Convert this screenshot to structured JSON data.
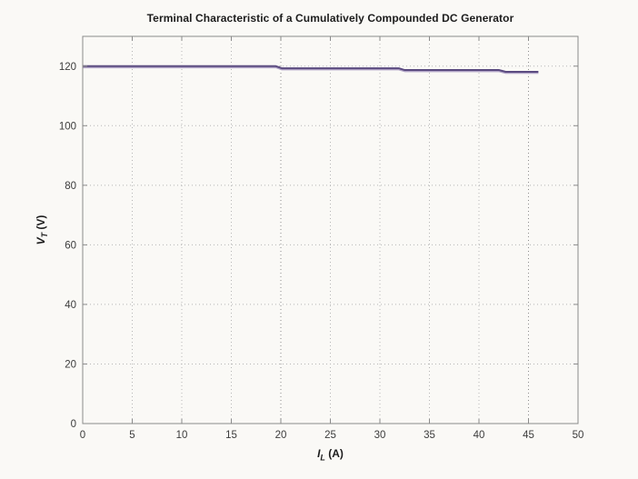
{
  "figure": {
    "background": "#faf9f6"
  },
  "chart_data": {
    "type": "line",
    "title": "Terminal Characteristic of a Cumulatively Compounded DC Generator",
    "xlabel": {
      "var": "I",
      "sub": "L",
      "unit": "(A)"
    },
    "ylabel": {
      "var": "V",
      "sub": "T",
      "unit": "(V)"
    },
    "xlim": [
      0,
      50
    ],
    "ylim": [
      0,
      130
    ],
    "xticks": [
      0,
      5,
      10,
      15,
      20,
      25,
      30,
      35,
      40,
      45,
      50
    ],
    "yticks": [
      0,
      20,
      40,
      60,
      80,
      100,
      120
    ],
    "grid": "on",
    "grid_style": "dotted",
    "legend_position": "none",
    "axis_color": "#8a8a8a",
    "grid_color": "#b5b5b5",
    "grid_color_emphasis": "#8c8c8c",
    "emphasized_xgrid": [
      20,
      45
    ],
    "tick_label_color": "#3c3c3c",
    "series": [
      {
        "name": "terminal-voltage-curve",
        "color": "#5b4b80",
        "halo_color": "#b0a3c6",
        "width": 2,
        "points": [
          [
            0,
            120.0
          ],
          [
            19.5,
            120.0
          ],
          [
            20.1,
            119.3
          ],
          [
            31.9,
            119.3
          ],
          [
            32.5,
            118.7
          ],
          [
            42.0,
            118.7
          ],
          [
            42.7,
            118.1
          ],
          [
            46.0,
            118.1
          ]
        ]
      }
    ]
  }
}
